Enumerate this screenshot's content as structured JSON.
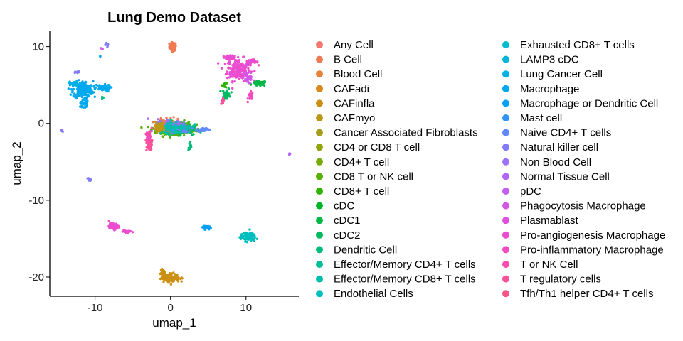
{
  "chart_data": {
    "type": "scatter",
    "title": "Lung Demo Dataset",
    "xlabel": "umap_1",
    "ylabel": "umap_2",
    "xlim": [
      -16,
      17
    ],
    "ylim": [
      -22.5,
      12
    ],
    "xticks": [
      -10,
      0,
      10
    ],
    "yticks": [
      10,
      0,
      -10,
      -20
    ],
    "x_tick_labels": [
      "-10",
      "0",
      "10"
    ],
    "y_tick_labels": [
      "10",
      "0",
      "-10",
      "-20"
    ],
    "grid": false,
    "legend_position": "right",
    "series": [
      {
        "name": "Any Cell",
        "color": "#F8766D"
      },
      {
        "name": "B Cell",
        "color": "#F07B53"
      },
      {
        "name": "Blood Cell",
        "color": "#E6823A"
      },
      {
        "name": "CAFadi",
        "color": "#DA891F"
      },
      {
        "name": "CAFinfla",
        "color": "#CB9012"
      },
      {
        "name": "CAFmyo",
        "color": "#BA9813"
      },
      {
        "name": "Cancer Associated Fibroblasts",
        "color": "#A69F1E"
      },
      {
        "name": "CD4 or CD8 T cell",
        "color": "#90A50A"
      },
      {
        "name": "CD4+ T cell",
        "color": "#77AB00"
      },
      {
        "name": "CD8 T or NK cell",
        "color": "#59B000"
      },
      {
        "name": "CD8+ T cell",
        "color": "#2EB300"
      },
      {
        "name": "cDC",
        "color": "#00B628"
      },
      {
        "name": "cDC1",
        "color": "#00B847"
      },
      {
        "name": "cDC2",
        "color": "#00BA62"
      },
      {
        "name": "Dendritic Cell",
        "color": "#00BC7B"
      },
      {
        "name": "Effector/Memory CD4+ T cells",
        "color": "#00BD94"
      },
      {
        "name": "Effector/Memory CD8+ T cells",
        "color": "#00BEAC"
      },
      {
        "name": "Endothelial Cells",
        "color": "#00BEC0"
      },
      {
        "name": "Exhausted CD8+ T cells",
        "color": "#00BCCD"
      },
      {
        "name": "LAMP3 cDC",
        "color": "#00B7DA"
      },
      {
        "name": "Lung Cancer Cell",
        "color": "#00B1E4"
      },
      {
        "name": "Macrophage",
        "color": "#00A9EE"
      },
      {
        "name": "Macrophage or Dendritic Cell",
        "color": "#00A0F5"
      },
      {
        "name": "Mast cell",
        "color": "#2D95FA"
      },
      {
        "name": "Naive CD4+ T cells",
        "color": "#6189FD"
      },
      {
        "name": "Natural killer cell",
        "color": "#837CFF"
      },
      {
        "name": "Non Blood Cell",
        "color": "#9D71FC"
      },
      {
        "name": "Normal Tissue Cell",
        "color": "#B266F8"
      },
      {
        "name": "pDC",
        "color": "#C45DF1"
      },
      {
        "name": "Phagocytosis Macrophage",
        "color": "#D456E8"
      },
      {
        "name": "Plasmablast",
        "color": "#E150DD"
      },
      {
        "name": "Pro-angiogenesis Macrophage",
        "color": "#EC4CCF"
      },
      {
        "name": "Pro-inflammatory Macrophage",
        "color": "#F34BBF"
      },
      {
        "name": "T or NK Cell",
        "color": "#F84CAE"
      },
      {
        "name": "T regulatory cells",
        "color": "#FB509B"
      },
      {
        "name": "Tfh/Th1 helper CD4+ T cells",
        "color": "#FB5687"
      }
    ],
    "clusters": [
      {
        "x": 0.3,
        "y": 10.0,
        "sx": 0.4,
        "sy": 0.5,
        "n": 70,
        "color": "#F07B53"
      },
      {
        "x": 9.0,
        "y": 7.0,
        "sx": 1.4,
        "sy": 1.3,
        "n": 200,
        "color": "#EC4CCF"
      },
      {
        "x": 7.8,
        "y": 8.6,
        "sx": 0.8,
        "sy": 0.2,
        "n": 40,
        "color": "#EC4CCF"
      },
      {
        "x": 10.8,
        "y": 8.0,
        "sx": 0.7,
        "sy": 0.3,
        "n": 30,
        "color": "#EC4CCF"
      },
      {
        "x": 10.3,
        "y": 6.0,
        "sx": 0.6,
        "sy": 0.9,
        "n": 40,
        "color": "#D456E8"
      },
      {
        "x": 11.8,
        "y": 5.2,
        "sx": 0.8,
        "sy": 0.3,
        "n": 45,
        "color": "#00B847"
      },
      {
        "x": 10.6,
        "y": 3.5,
        "sx": 0.3,
        "sy": 0.5,
        "n": 20,
        "color": "#F34BBF"
      },
      {
        "x": 7.4,
        "y": 3.8,
        "sx": 0.5,
        "sy": 0.7,
        "n": 35,
        "color": "#00BA62"
      },
      {
        "x": 7.2,
        "y": 5.0,
        "sx": 0.3,
        "sy": 0.3,
        "n": 10,
        "color": "#2EB300"
      },
      {
        "x": 6.9,
        "y": 2.9,
        "sx": 0.2,
        "sy": 0.3,
        "n": 10,
        "color": "#FB509B"
      },
      {
        "x": -11.6,
        "y": 4.4,
        "sx": 1.2,
        "sy": 1.0,
        "n": 240,
        "color": "#00A9EE"
      },
      {
        "x": -9.0,
        "y": 4.6,
        "sx": 0.9,
        "sy": 0.4,
        "n": 55,
        "color": "#00A9EE"
      },
      {
        "x": -11.5,
        "y": 2.6,
        "sx": 0.4,
        "sy": 0.6,
        "n": 30,
        "color": "#00A9EE"
      },
      {
        "x": -12.8,
        "y": 5.2,
        "sx": 0.5,
        "sy": 0.3,
        "n": 25,
        "color": "#00B1E4"
      },
      {
        "x": -12.4,
        "y": 6.6,
        "sx": 0.4,
        "sy": 0.2,
        "n": 8,
        "color": "#837CFF"
      },
      {
        "x": -9.0,
        "y": 3.4,
        "sx": 0.2,
        "sy": 0.3,
        "n": 6,
        "color": "#00BC7B"
      },
      {
        "x": -8.4,
        "y": 10.2,
        "sx": 0.2,
        "sy": 0.3,
        "n": 8,
        "color": "#837CFF"
      },
      {
        "x": -9.1,
        "y": 9.7,
        "sx": 0.1,
        "sy": 0.1,
        "n": 2,
        "color": "#D456E8"
      },
      {
        "x": -9.3,
        "y": 8.7,
        "sx": 0.05,
        "sy": 0.05,
        "n": 2,
        "color": "#00A0F5"
      },
      {
        "x": 0.5,
        "y": -0.6,
        "sx": 2.1,
        "sy": 0.7,
        "n": 400,
        "color": "#59B000"
      },
      {
        "x": -0.2,
        "y": -0.3,
        "sx": 1.3,
        "sy": 0.7,
        "n": 150,
        "color": "#F07B53"
      },
      {
        "x": 1.2,
        "y": -0.8,
        "sx": 1.8,
        "sy": 0.6,
        "n": 180,
        "color": "#00BA62"
      },
      {
        "x": 0.8,
        "y": -0.5,
        "sx": 1.8,
        "sy": 0.6,
        "n": 120,
        "color": "#6189FD"
      },
      {
        "x": 0.0,
        "y": -0.2,
        "sx": 1.6,
        "sy": 0.7,
        "n": 80,
        "color": "#9D71FC"
      },
      {
        "x": 0.6,
        "y": -0.5,
        "sx": 2.0,
        "sy": 0.7,
        "n": 80,
        "color": "#00BEAC"
      },
      {
        "x": -1.5,
        "y": -0.5,
        "sx": 0.7,
        "sy": 0.6,
        "n": 50,
        "color": "#BA9813"
      },
      {
        "x": 4.3,
        "y": -0.8,
        "sx": 0.6,
        "sy": 0.2,
        "n": 40,
        "color": "#6189FD"
      },
      {
        "x": 2.5,
        "y": -2.8,
        "sx": 0.2,
        "sy": 0.4,
        "n": 12,
        "color": "#00BC7B"
      },
      {
        "x": -2.8,
        "y": -2.4,
        "sx": 0.35,
        "sy": 1.2,
        "n": 70,
        "color": "#FB509B"
      },
      {
        "x": -3.0,
        "y": -1.6,
        "sx": 0.2,
        "sy": 0.6,
        "n": 12,
        "color": "#F34BBF"
      },
      {
        "x": -14.4,
        "y": -1.0,
        "sx": 0.1,
        "sy": 0.2,
        "n": 5,
        "color": "#837CFF"
      },
      {
        "x": -10.8,
        "y": -7.3,
        "sx": 0.2,
        "sy": 0.2,
        "n": 8,
        "color": "#837CFF"
      },
      {
        "x": 15.8,
        "y": -4.0,
        "sx": 0.1,
        "sy": 0.1,
        "n": 4,
        "color": "#B266F8"
      },
      {
        "x": -7.5,
        "y": -13.4,
        "sx": 0.6,
        "sy": 0.35,
        "n": 60,
        "color": "#EC4CCF"
      },
      {
        "x": -5.8,
        "y": -14.1,
        "sx": 0.5,
        "sy": 0.25,
        "n": 25,
        "color": "#EC4CCF"
      },
      {
        "x": 4.6,
        "y": -13.5,
        "sx": 0.4,
        "sy": 0.2,
        "n": 40,
        "color": "#00A0F5"
      },
      {
        "x": 10.3,
        "y": -14.8,
        "sx": 0.9,
        "sy": 0.5,
        "n": 120,
        "color": "#00BEC0"
      },
      {
        "x": 0.0,
        "y": -20.1,
        "sx": 1.1,
        "sy": 0.5,
        "n": 150,
        "color": "#CB9012"
      },
      {
        "x": -1.0,
        "y": -19.3,
        "sx": 0.4,
        "sy": 0.3,
        "n": 20,
        "color": "#CB9012"
      }
    ]
  }
}
